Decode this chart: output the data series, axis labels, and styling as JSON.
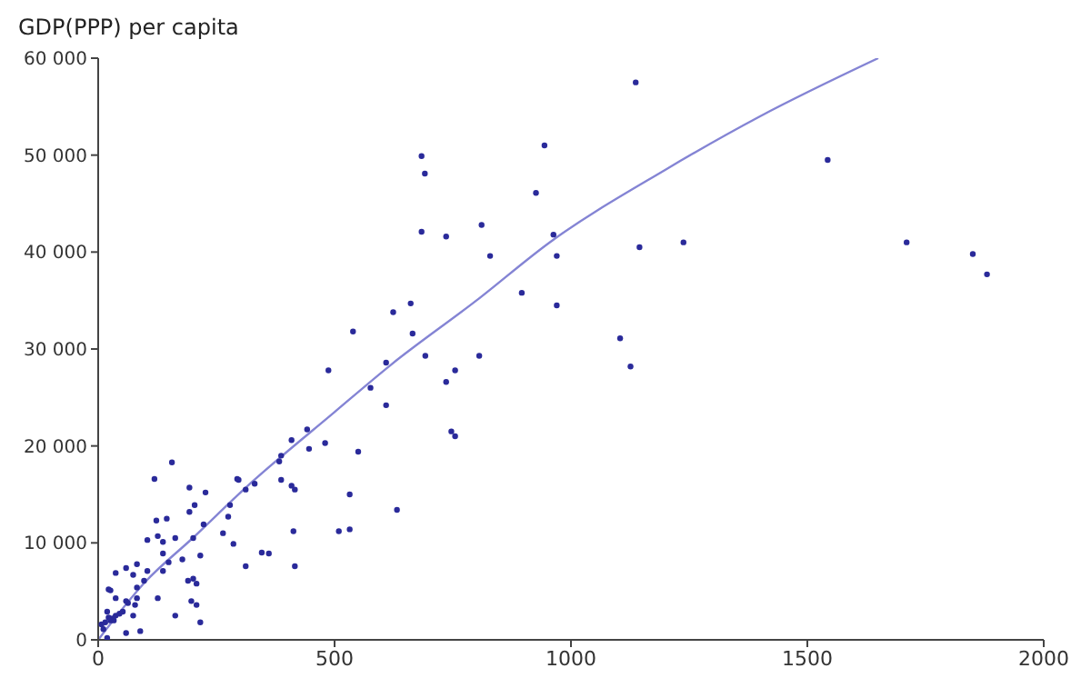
{
  "chart_data": {
    "type": "scatter",
    "ylabel": "GDP(PPP) per capita",
    "xlim": [
      0,
      2000
    ],
    "xticks": [
      0,
      500,
      1000,
      1500,
      2000
    ],
    "ylim": [
      0,
      60000
    ],
    "yticks": [
      {
        "value": 0,
        "label": "0"
      },
      {
        "value": 10000,
        "label": "10 000"
      },
      {
        "value": 20000,
        "label": "20 000"
      },
      {
        "value": 30000,
        "label": "30 000"
      },
      {
        "value": 40000,
        "label": "40 000"
      },
      {
        "value": 50000,
        "label": "50 000"
      },
      {
        "value": 60000,
        "label": "60 000"
      }
    ],
    "grid": false,
    "legend": false,
    "marker": "circle",
    "series": [
      {
        "color": "#2a2a9a",
        "x": [
          1137,
          1543,
          1710,
          1850,
          1880,
          963,
          970,
          1145,
          1238,
          970,
          1104,
          1126,
          684,
          691,
          684,
          736,
          811,
          829,
          896,
          944,
          926,
          624,
          661,
          665,
          539,
          487,
          609,
          692,
          806,
          736,
          755,
          576,
          609,
          747,
          755,
          550,
          632,
          509,
          532,
          532,
          409,
          442,
          446,
          480,
          383,
          387,
          387,
          409,
          416,
          413,
          416,
          331,
          312,
          297,
          294,
          279,
          275,
          264,
          286,
          312,
          346,
          361,
          223,
          227,
          204,
          193,
          193,
          201,
          216,
          201,
          190,
          208,
          197,
          208,
          216,
          156,
          119,
          123,
          145,
          126,
          137,
          104,
          163,
          137,
          149,
          178,
          137,
          126,
          163,
          104,
          97,
          82,
          74,
          59,
          37,
          82,
          82,
          78,
          74,
          89,
          59,
          59,
          63,
          22,
          26,
          37,
          37,
          30,
          22,
          19,
          15,
          7,
          11,
          19,
          45,
          52,
          26,
          33
        ],
        "values": [
          57500,
          49500,
          41000,
          39800,
          37700,
          41800,
          39600,
          40500,
          41000,
          34500,
          31100,
          28200,
          49900,
          48100,
          42100,
          41600,
          42800,
          39600,
          35800,
          51000,
          46100,
          33800,
          34700,
          31600,
          31800,
          27800,
          28600,
          29300,
          29300,
          26600,
          27800,
          26000,
          24200,
          21500,
          21000,
          19400,
          13400,
          11200,
          11400,
          15000,
          20600,
          21700,
          19700,
          20300,
          18400,
          19000,
          16500,
          15900,
          15500,
          11200,
          7600,
          16100,
          15500,
          16500,
          16600,
          13900,
          12700,
          11000,
          9900,
          7600,
          9000,
          8900,
          11900,
          15200,
          13900,
          15700,
          13200,
          10500,
          8700,
          6300,
          6100,
          5800,
          4000,
          3600,
          1800,
          18300,
          16600,
          12300,
          12500,
          10700,
          10100,
          10300,
          10500,
          8900,
          8000,
          8300,
          7100,
          4300,
          2500,
          7100,
          6100,
          7800,
          6700,
          7400,
          6900,
          5400,
          4300,
          3600,
          2500,
          900,
          700,
          4000,
          3800,
          5200,
          5100,
          4300,
          2500,
          2200,
          2300,
          2900,
          1800,
          1600,
          1100,
          200,
          2700,
          2900,
          2000,
          2000
        ]
      },
      {
        "type": "line",
        "color": "#8484d4",
        "line_style": "solid",
        "marker": "none",
        "x": [
          0,
          100,
          200,
          312,
          500,
          620,
          800,
          955,
          1200,
          1400,
          1650
        ],
        "values": [
          0,
          6000,
          10500,
          15700,
          23500,
          28400,
          35000,
          41000,
          48500,
          54000,
          60000
        ]
      }
    ]
  }
}
